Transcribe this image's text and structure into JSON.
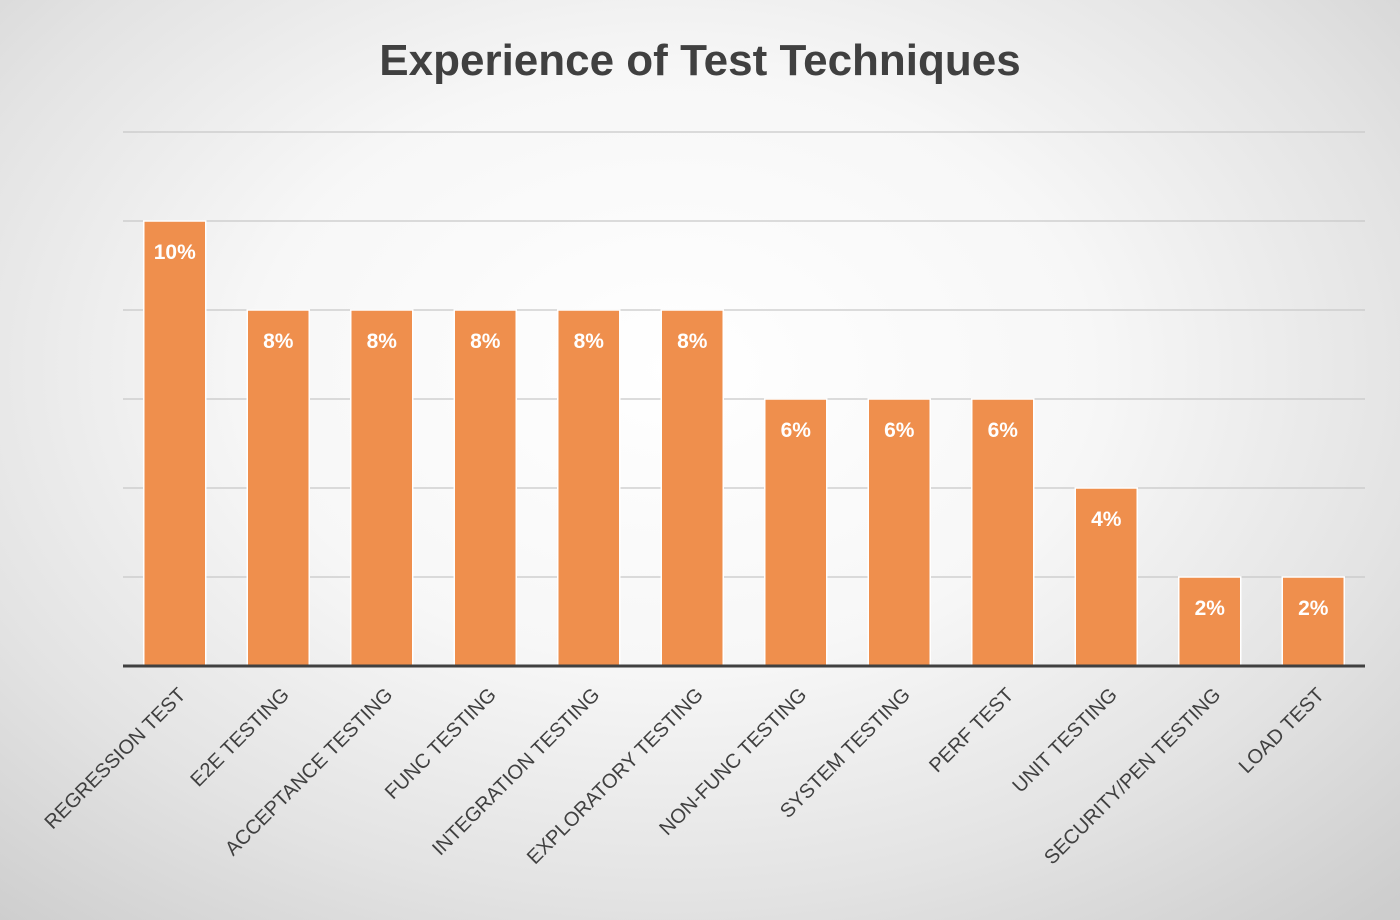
{
  "chart_data": {
    "type": "bar",
    "title": "Experience of Test Techniques",
    "categories": [
      "REGRESSION TEST",
      "E2E TESTING",
      "ACCEPTANCE TESTING",
      "FUNC TESTING",
      "INTEGRATION TESTING",
      "EXPLORATORY TESTING",
      "NON-FUNC TESTING",
      "SYSTEM TESTING",
      "PERF TEST",
      "UNIT TESTING",
      "SECURITY/PEN TESTING",
      "LOAD TEST"
    ],
    "values": [
      10,
      8,
      8,
      8,
      8,
      8,
      6,
      6,
      6,
      4,
      2,
      2
    ],
    "value_labels": [
      "10%",
      "8%",
      "8%",
      "8%",
      "8%",
      "8%",
      "6%",
      "6%",
      "6%",
      "4%",
      "2%",
      "2%"
    ],
    "unit": "%",
    "ylim": [
      0,
      12
    ],
    "grid": true,
    "legend": "none",
    "xlabel": "",
    "ylabel": "",
    "bar_color": "#ef8f4d",
    "bar_edge_color": "#ffffff",
    "label_color": "#ffffff",
    "title_color": "#404040",
    "axis_color": "#404040",
    "grid_color": "#c8c8c8"
  }
}
